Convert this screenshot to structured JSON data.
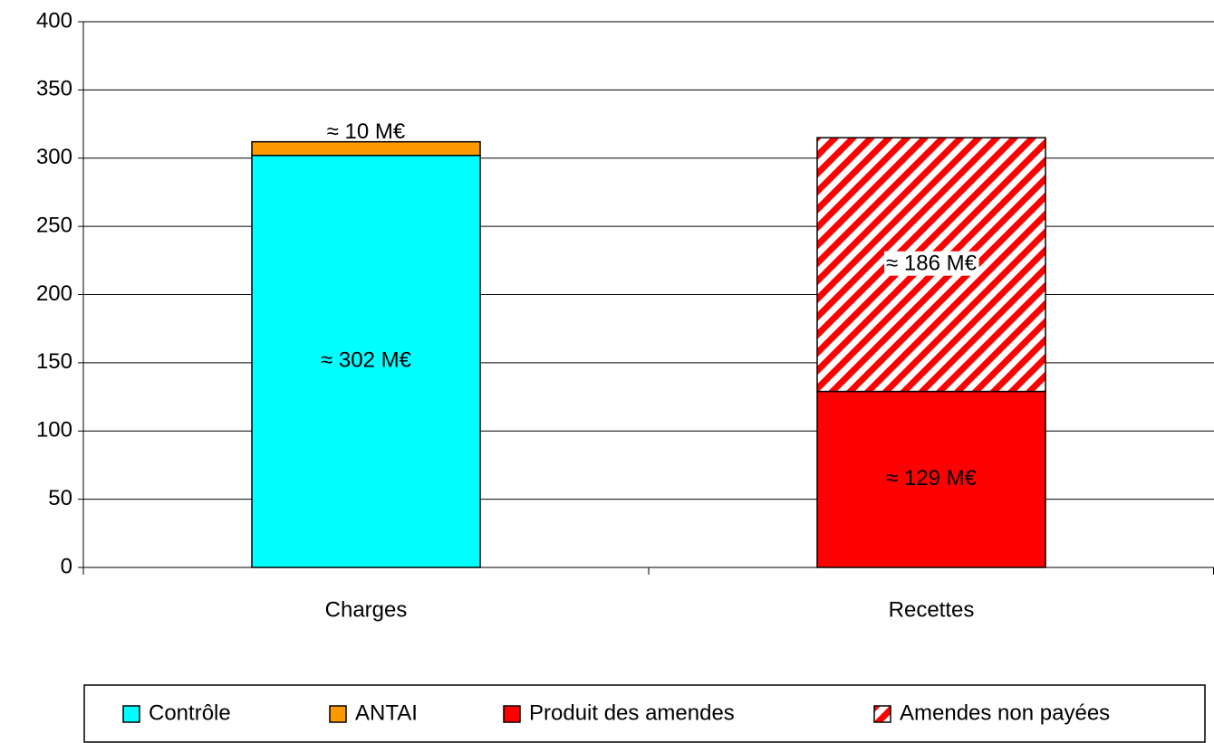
{
  "chart_data": {
    "type": "stacked_bar",
    "categories": [
      "Charges",
      "Recettes"
    ],
    "series": [
      {
        "name": "Contrôle",
        "color": "#00ffff",
        "values": [
          302,
          null
        ],
        "value_labels": [
          "≈ 302 M€",
          null
        ]
      },
      {
        "name": "ANTAI",
        "color": "#ff9900",
        "values": [
          10,
          null
        ],
        "value_labels": [
          "≈ 10 M€",
          null
        ]
      },
      {
        "name": "Produit des amendes",
        "color": "#ff0000",
        "values": [
          null,
          129
        ],
        "value_labels": [
          null,
          "≈ 129 M€"
        ]
      },
      {
        "name": "Amendes non payées",
        "color": "#ff0000",
        "pattern": "hatch",
        "values": [
          null,
          186
        ],
        "value_labels": [
          null,
          "≈ 186 M€"
        ]
      }
    ],
    "ylim": [
      0,
      400
    ],
    "yticks": [
      0,
      50,
      100,
      150,
      200,
      250,
      300,
      350,
      400
    ],
    "grid": true,
    "legend": "bottom"
  }
}
